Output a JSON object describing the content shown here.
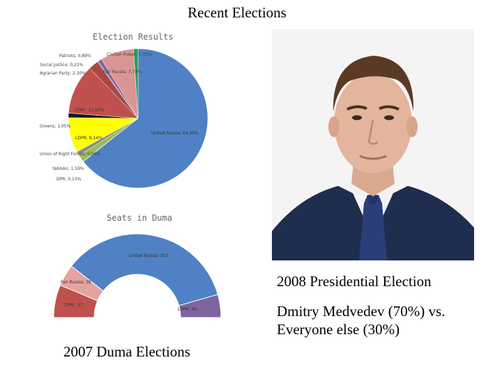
{
  "title": "Recent Elections",
  "captions": {
    "presidential": "2008 Presidential Election",
    "versus": "Dmitry Medvedev (70%) vs. Everyone else (30%)",
    "duma": "2007 Duma Elections"
  },
  "chart_data": [
    {
      "type": "pie",
      "title": "Election Results",
      "slices": [
        {
          "label": "United Russia; 64,30%",
          "value": 64.3,
          "color": "#4f81c4"
        },
        {
          "label": "DPR; 0,13%",
          "value": 0.13,
          "color": "#8aa860"
        },
        {
          "label": "Yabloko; 1,59%",
          "value": 1.59,
          "color": "#9bbb59"
        },
        {
          "label": "Union of Right Forces; 0,96%",
          "value": 0.96,
          "color": "#8c8c8c"
        },
        {
          "label": "LDPR; 8,14%",
          "value": 8.14,
          "color": "#ffff00"
        },
        {
          "label": "Greens; 1,05%",
          "value": 1.05,
          "color": "#1a1a1a"
        },
        {
          "label": "CPRF; 11,57%",
          "value": 11.57,
          "color": "#c0504d"
        },
        {
          "label": "Agrarian Party; 2,30%",
          "value": 2.3,
          "color": "#a84844"
        },
        {
          "label": "Social Justice; 0,22%",
          "value": 0.22,
          "color": "#7f6b9c"
        },
        {
          "label": "Patriots; 0,89%",
          "value": 0.89,
          "color": "#8064a2"
        },
        {
          "label": "Fair Russia; 7,74%",
          "value": 7.74,
          "color": "#d99594"
        },
        {
          "label": "Civilian Power; 1,05%",
          "value": 1.05,
          "color": "#2e9e4f"
        }
      ]
    },
    {
      "type": "pie",
      "title": "Seats in Duma",
      "slices": [
        {
          "label": "CPRF; 57",
          "value": 57,
          "color": "#c0504d"
        },
        {
          "label": "Fair Russia; 38",
          "value": 38,
          "color": "#e6a2a0"
        },
        {
          "label": "United Russia; 315",
          "value": 315,
          "color": "#4f81c4"
        },
        {
          "label": "LDPR; 40",
          "value": 40,
          "color": "#8064a2"
        }
      ]
    }
  ],
  "photo_alt": "Dmitry Medvedev portrait"
}
